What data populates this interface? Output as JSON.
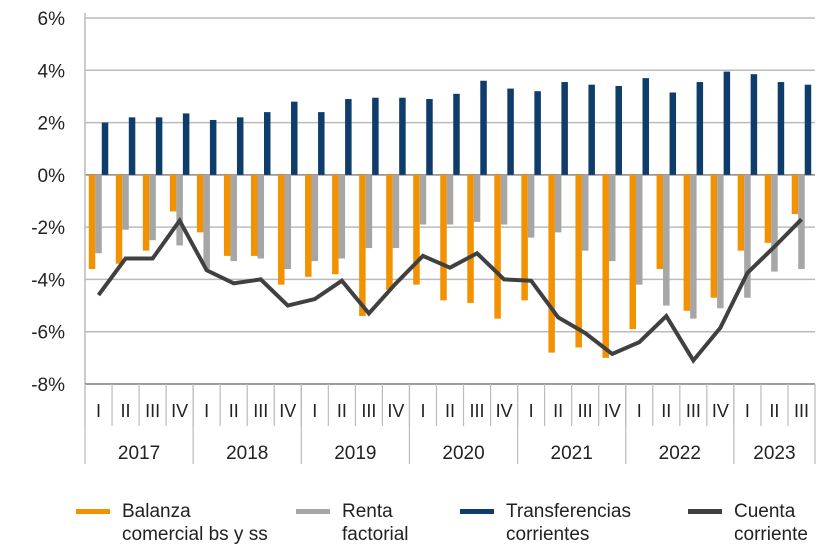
{
  "chart_data": {
    "type": "bar",
    "y_axis": {
      "min": -8,
      "max": 6,
      "step": 2,
      "tick_labels": [
        "-8%",
        "-6%",
        "-4%",
        "-2%",
        "0%",
        "2%",
        "4%",
        "6%"
      ]
    },
    "grid": "horizontal",
    "legend_placement": "bottom",
    "quarters": [
      "I",
      "II",
      "III",
      "IV",
      "I",
      "II",
      "III",
      "IV",
      "I",
      "II",
      "III",
      "IV",
      "I",
      "II",
      "III",
      "IV",
      "I",
      "II",
      "III",
      "IV",
      "I",
      "II",
      "III",
      "IV",
      "I",
      "II",
      "III"
    ],
    "years": [
      {
        "label": "2017",
        "quarters": 4
      },
      {
        "label": "2018",
        "quarters": 4
      },
      {
        "label": "2019",
        "quarters": 4
      },
      {
        "label": "2020",
        "quarters": 4
      },
      {
        "label": "2021",
        "quarters": 4
      },
      {
        "label": "2022",
        "quarters": 4
      },
      {
        "label": "2023",
        "quarters": 3
      }
    ],
    "series": [
      {
        "name": "Balanza comercial bs y ss",
        "legend_lines": [
          "Balanza",
          "comercial bs y ss"
        ],
        "kind": "bar",
        "color": "#F39200",
        "values": [
          -3.6,
          -3.4,
          -2.9,
          -1.4,
          -2.2,
          -3.1,
          -3.1,
          -4.2,
          -3.9,
          -3.8,
          -5.4,
          -4.4,
          -4.2,
          -4.8,
          -4.9,
          -5.5,
          -4.8,
          -6.8,
          -6.6,
          -7.0,
          -5.9,
          -3.6,
          -5.2,
          -4.7,
          -2.9,
          -2.6,
          -1.5
        ]
      },
      {
        "name": "Renta factorial",
        "legend_lines": [
          "Renta",
          "factorial"
        ],
        "kind": "bar",
        "color": "#A6A6A6",
        "values": [
          -3.0,
          -2.1,
          -2.5,
          -2.7,
          -3.6,
          -3.3,
          -3.2,
          -3.6,
          -3.3,
          -3.2,
          -2.8,
          -2.8,
          -1.9,
          -1.9,
          -1.8,
          -1.9,
          -2.4,
          -2.2,
          -2.9,
          -3.3,
          -4.2,
          -5.0,
          -5.5,
          -5.1,
          -4.7,
          -3.7,
          -3.6
        ]
      },
      {
        "name": "Transferencias corrientes",
        "legend_lines": [
          "Transferencias",
          "corrientes"
        ],
        "kind": "bar",
        "color": "#0E3D6B",
        "values": [
          2.0,
          2.2,
          2.2,
          2.35,
          2.1,
          2.2,
          2.4,
          2.8,
          2.4,
          2.9,
          2.95,
          2.95,
          2.9,
          3.1,
          3.6,
          3.3,
          3.2,
          3.55,
          3.45,
          3.4,
          3.7,
          3.15,
          3.55,
          3.95,
          3.85,
          3.55,
          3.45
        ]
      },
      {
        "name": "Cuenta corriente",
        "legend_lines": [
          "Cuenta",
          "corriente"
        ],
        "kind": "line",
        "color": "#404040",
        "values": [
          -4.6,
          -3.2,
          -3.2,
          -1.75,
          -3.65,
          -4.15,
          -4.0,
          -5.0,
          -4.75,
          -4.05,
          -5.3,
          -4.15,
          -3.1,
          -3.55,
          -3.0,
          -4.0,
          -4.05,
          -5.45,
          -6.05,
          -6.85,
          -6.4,
          -5.4,
          -7.1,
          -5.85,
          -3.75,
          -2.75,
          -1.7
        ]
      }
    ]
  }
}
